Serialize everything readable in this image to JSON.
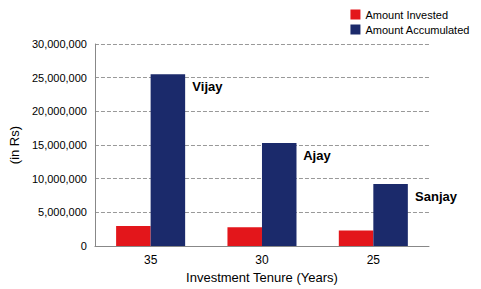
{
  "chart_data": {
    "type": "bar",
    "categories": [
      "35",
      "30",
      "25"
    ],
    "series": [
      {
        "name": "Amount Invested",
        "color": "#e3161b",
        "values": [
          3000000,
          2800000,
          2300000
        ]
      },
      {
        "name": "Amount Accumulated",
        "color": "#1b2a6b",
        "values": [
          25500000,
          15300000,
          9200000
        ]
      }
    ],
    "x_label": "Investment Tenure (Years)",
    "y_label": "(in Rs)",
    "ylim": [
      0,
      30000000
    ],
    "yticks": [
      0,
      {
        "value": 5000000,
        "label": "5,000,000"
      },
      {
        "value": 10000000,
        "label": "10,000,000"
      },
      {
        "value": 15000000,
        "label": "15,000,000"
      },
      {
        "value": 20000000,
        "label": "20,000,000"
      },
      {
        "value": 25000000,
        "label": "25,000,000"
      },
      {
        "value": 30000000,
        "label": "30,000,000"
      }
    ],
    "grid": true,
    "legend": "upper right",
    "annotations": [
      {
        "category": "35",
        "series": "Amount Accumulated",
        "text": "Vijay"
      },
      {
        "category": "30",
        "series": "Amount Accumulated",
        "text": "Ajay"
      },
      {
        "category": "25",
        "series": "Amount Accumulated",
        "text": "Sanjay"
      }
    ]
  }
}
